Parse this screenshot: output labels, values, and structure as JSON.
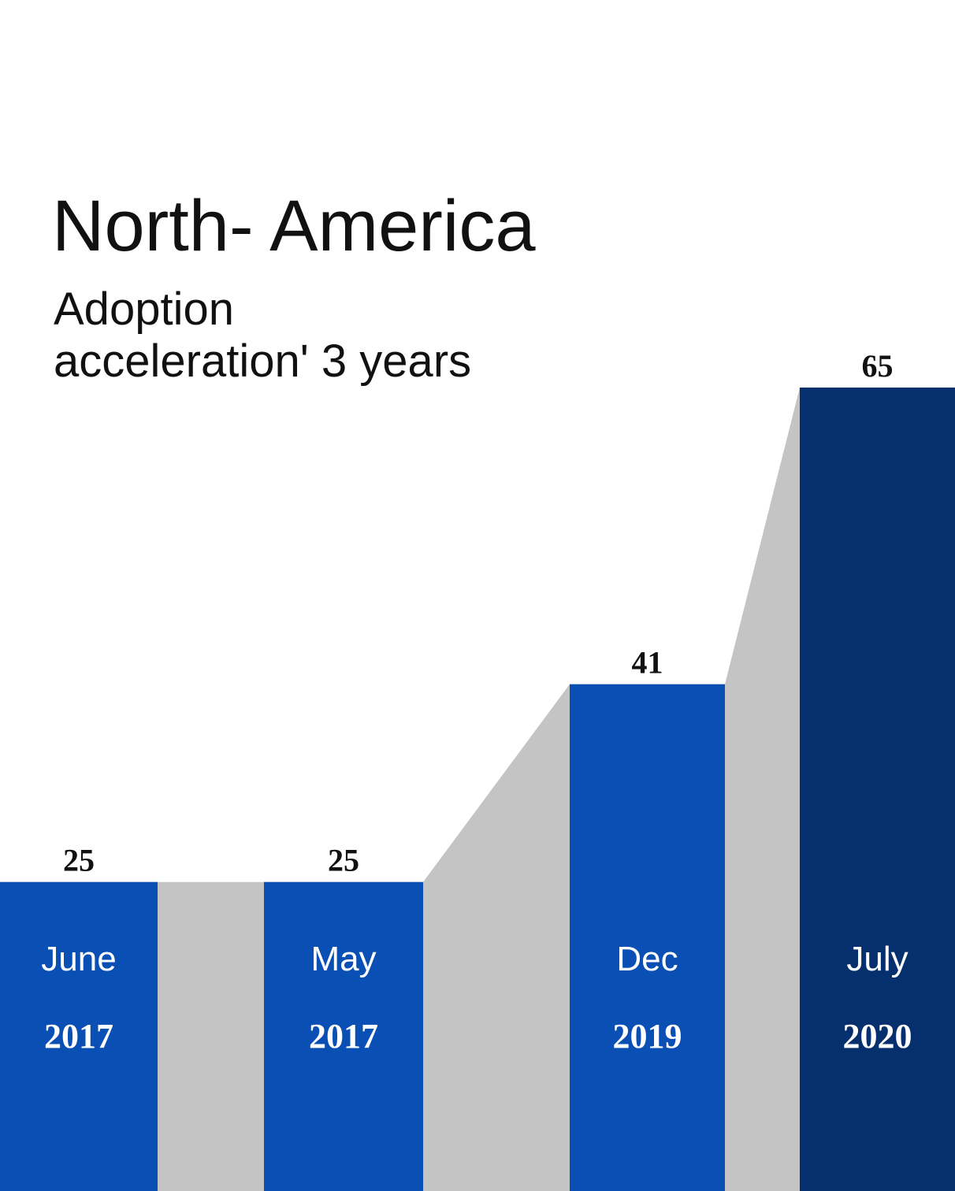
{
  "chart_data": {
    "type": "bar",
    "title": "North- America",
    "subtitle": [
      "Adoption",
      "acceleration' 3 years"
    ],
    "categories": [
      [
        "June",
        "2017"
      ],
      [
        "May",
        "2017"
      ],
      [
        "Dec",
        "2019"
      ],
      [
        "July",
        "2020"
      ]
    ],
    "values": [
      25,
      25,
      41,
      65
    ],
    "colors": [
      "#0a4fb4",
      "#0a4fb4",
      "#0a4fb4",
      "#062f6e"
    ],
    "connector_color": "#c4c4c4"
  }
}
